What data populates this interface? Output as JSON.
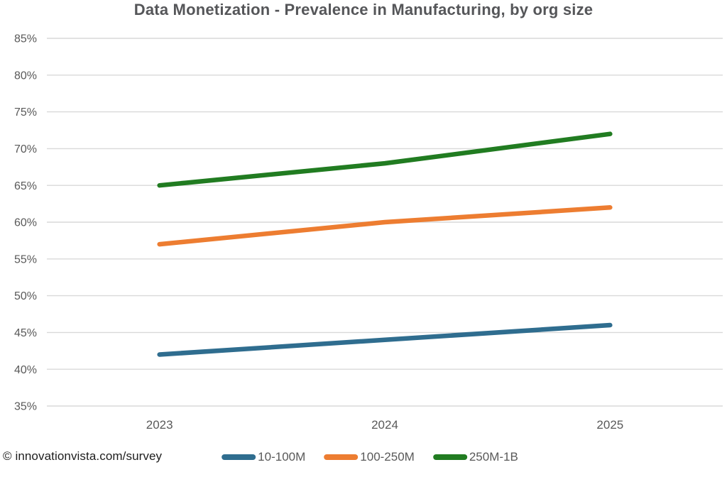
{
  "title": "Data Monetization - Prevalence in Manufacturing, by org size",
  "footer": {
    "source_label": "© innovationvista.com/survey"
  },
  "colors": {
    "grid": "#d9d9d9",
    "tick_label": "#595959",
    "title": "#555659",
    "footer_text": "#1d1d1d"
  },
  "chart_data": {
    "type": "line",
    "title": "Data Monetization - Prevalence in Manufacturing, by org size",
    "x": [
      "2023",
      "2024",
      "2025"
    ],
    "series": [
      {
        "name": "10-100M",
        "color": "#2f6d8f",
        "values": [
          42,
          44,
          46
        ]
      },
      {
        "name": "100-250M",
        "color": "#ed7d31",
        "values": [
          57,
          60,
          62
        ]
      },
      {
        "name": "250M-1B",
        "color": "#217c21",
        "values": [
          65,
          68,
          72
        ]
      }
    ],
    "xlabel": "",
    "ylabel": "",
    "ylim": [
      35,
      85
    ],
    "ytick_step": 5,
    "ytick_labels": [
      "35%",
      "40%",
      "45%",
      "50%",
      "55%",
      "60%",
      "65%",
      "70%",
      "75%",
      "80%",
      "85%"
    ],
    "grid": "horizontal",
    "legend_position": "bottom"
  }
}
